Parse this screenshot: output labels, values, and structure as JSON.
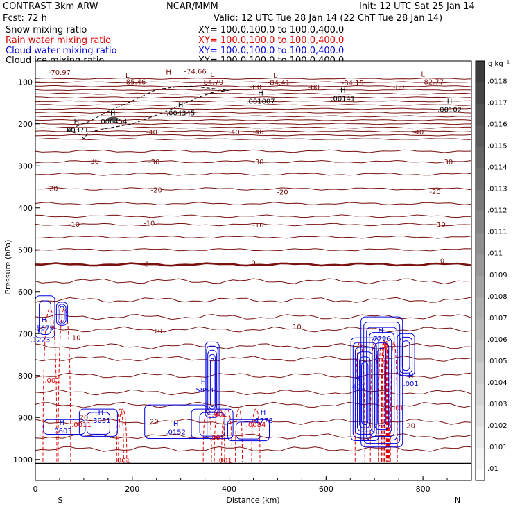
{
  "header": {
    "left_line1": "CONTRAST  3km ARW",
    "center_line1": "NCAR/MMM",
    "right_line1": "Init: 12 UTC Sat 25 Jan 14",
    "left_line2": "Fcst:    72 h",
    "right_line2": "Valid: 12 UTC Tue 28 Jan 14 (22 ChT Tue 28 Jan 14)"
  },
  "legend": [
    {
      "label": "Snow mixing ratio",
      "xy": "XY= 100.0,100.0 to 100.0,400.0",
      "color": "#000000"
    },
    {
      "label": "Rain water mixing ratio",
      "xy": "XY= 100.0,100.0 to 100.0,400.0",
      "color": "#e00000"
    },
    {
      "label": "Cloud water mixing ratio",
      "xy": "XY= 100.0,100.0 to 100.0,400.0",
      "color": "#0000e0"
    },
    {
      "label": "Cloud ice mixing ratio",
      "xy": "XY= 100.0,100.0 to 100.0,400.0",
      "color": "#000000"
    }
  ],
  "colors": {
    "temperature": "#7a1010",
    "zero_isotherm": "#7a1010",
    "rain": "#e00000",
    "cloud_water": "#0000e0",
    "ice": "#000000"
  },
  "colorbar": {
    "units": "g kg⁻¹",
    "labels": [
      ".0118",
      ".0117",
      ".0116",
      ".0115",
      ".0114",
      ".0113",
      ".0112",
      ".0111",
      ".011",
      ".0109",
      ".0108",
      ".0107",
      ".0106",
      ".0105",
      ".0104",
      ".0103",
      ".0102",
      ".0101",
      ".01"
    ]
  },
  "chart_data": {
    "type": "line",
    "xlabel": "Distance (km)",
    "ylabel": "Pressure (hPa)",
    "xlim": [
      0,
      900
    ],
    "ylim": [
      1050,
      50
    ],
    "x_ticks": [
      0,
      200,
      400,
      600,
      800
    ],
    "y_ticks": [
      100,
      200,
      300,
      400,
      500,
      600,
      700,
      800,
      900,
      1000
    ],
    "end_labels": {
      "left": "S",
      "right": "N"
    },
    "isotherm_labels": [
      {
        "text": "-70.97",
        "x": 50,
        "p": 78
      },
      {
        "text": "-74.66",
        "x": 330,
        "p": 76
      },
      {
        "text": "-85.46",
        "x": 205,
        "p": 100
      },
      {
        "text": "-84.79",
        "x": 365,
        "p": 101
      },
      {
        "text": "-84.41",
        "x": 502,
        "p": 102
      },
      {
        "text": "-84.15",
        "x": 655,
        "p": 103
      },
      {
        "text": "-82.77",
        "x": 820,
        "p": 100
      },
      {
        "text": "-80",
        "x": 455,
        "p": 113
      },
      {
        "text": "-80",
        "x": 575,
        "p": 113
      },
      {
        "text": "-80",
        "x": 750,
        "p": 113
      },
      {
        "text": "-40",
        "x": 240,
        "p": 220
      },
      {
        "text": "-40",
        "x": 410,
        "p": 220
      },
      {
        "text": "-40",
        "x": 460,
        "p": 220
      },
      {
        "text": "-40",
        "x": 790,
        "p": 220
      },
      {
        "text": "-30",
        "x": 120,
        "p": 290
      },
      {
        "text": "-30",
        "x": 245,
        "p": 291
      },
      {
        "text": "-30",
        "x": 460,
        "p": 291
      },
      {
        "text": "-30",
        "x": 850,
        "p": 291
      },
      {
        "text": "-20",
        "x": 35,
        "p": 355
      },
      {
        "text": "-20",
        "x": 250,
        "p": 358
      },
      {
        "text": "-20",
        "x": 510,
        "p": 363
      },
      {
        "text": "-20",
        "x": 825,
        "p": 362
      },
      {
        "text": "-10",
        "x": 80,
        "p": 440
      },
      {
        "text": "-10",
        "x": 235,
        "p": 438
      },
      {
        "text": "-10",
        "x": 460,
        "p": 442
      },
      {
        "text": "-10",
        "x": 835,
        "p": 440
      },
      {
        "text": "0",
        "x": 230,
        "p": 535
      },
      {
        "text": "0",
        "x": 450,
        "p": 532
      },
      {
        "text": "0",
        "x": 840,
        "p": 527
      },
      {
        "text": "10",
        "x": 540,
        "p": 685
      },
      {
        "text": "-10",
        "x": 82,
        "p": 710
      },
      {
        "text": "10",
        "x": 253,
        "p": 695
      },
      {
        "text": "20",
        "x": 100,
        "p": 900
      },
      {
        "text": "20",
        "x": 245,
        "p": 910
      },
      {
        "text": "20",
        "x": 775,
        "p": 920
      }
    ],
    "ice_extrema": [
      {
        "kind": "H",
        "value": ".00371",
        "x": 85,
        "p": 200
      },
      {
        "kind": "H",
        "value": ".006454",
        "x": 160,
        "p": 180
      },
      {
        "kind": "H",
        "value": ".004345",
        "x": 300,
        "p": 160
      },
      {
        "kind": "H",
        "value": ".001007",
        "x": 465,
        "p": 132
      },
      {
        "kind": "H",
        "value": ".00141",
        "x": 635,
        "p": 125
      },
      {
        "kind": "H",
        "value": ".00102",
        "x": 855,
        "p": 152
      },
      {
        "kind": "L",
        "value": "",
        "x": 190,
        "p": 90
      },
      {
        "kind": "H",
        "value": "",
        "x": 275,
        "p": 82
      },
      {
        "kind": "L",
        "value": "",
        "x": 365,
        "p": 88
      },
      {
        "kind": "L",
        "value": "",
        "x": 495,
        "p": 90
      },
      {
        "kind": "L",
        "value": "",
        "x": 635,
        "p": 93
      },
      {
        "kind": "L",
        "value": "",
        "x": 800,
        "p": 87
      }
    ],
    "cloud_extrema": [
      {
        "kind": "H",
        "value": ".5679",
        "x": 18,
        "p": 672
      },
      {
        "kind": "H",
        "value": ".1223",
        "x": 10,
        "p": 700
      },
      {
        "kind": "H",
        "value": ".7796",
        "x": 713,
        "p": 698
      },
      {
        "kind": "H",
        "value": ".401",
        "x": 665,
        "p": 813
      },
      {
        "kind": "H",
        "value": ".5853",
        "x": 347,
        "p": 820
      },
      {
        "kind": "H",
        "value": ".3051",
        "x": 135,
        "p": 893
      },
      {
        "kind": "H",
        "value": ".0603",
        "x": 55,
        "p": 918
      },
      {
        "kind": "H",
        "value": ".0152",
        "x": 290,
        "p": 920
      },
      {
        "kind": "H",
        "value": ".1778",
        "x": 470,
        "p": 893
      },
      {
        "kind": "H",
        "value": ".001",
        "x": 775,
        "p": 805
      }
    ],
    "rain_labels": [
      {
        "value": ".001",
        "x": 35,
        "p": 812
      },
      {
        "value": ".0011",
        "x": 95,
        "p": 918
      },
      {
        "value": ".001",
        "x": 380,
        "p": 893
      },
      {
        "value": ".001",
        "x": 375,
        "p": 948
      },
      {
        "value": ".0084",
        "x": 455,
        "p": 918
      },
      {
        "value": ".001",
        "x": 180,
        "p": 1003
      },
      {
        "value": ".001",
        "x": 390,
        "p": 1003
      },
      {
        "value": ".001",
        "x": 745,
        "p": 878
      }
    ]
  }
}
